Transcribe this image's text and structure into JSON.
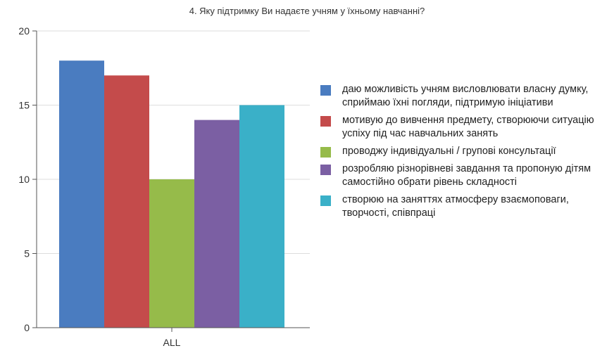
{
  "chart_data": {
    "type": "bar",
    "title": "4. Яку підтримку Ви надаєте учням у їхньому навчанні?",
    "categories": [
      "ALL"
    ],
    "ylim": [
      0,
      20
    ],
    "yticks": [
      0,
      5,
      10,
      15,
      20
    ],
    "grid": true,
    "legend_position": "right",
    "series": [
      {
        "name": "даю можливість учням висловлювати власну думку, сприймаю їхні погляди, підтримую ініціативи",
        "values": [
          18
        ],
        "color": "#4a7cc0"
      },
      {
        "name": "мотивую до вивчення предмету, створюючи ситуацію успіху під час навчальних занять",
        "values": [
          17
        ],
        "color": "#c44b4b"
      },
      {
        "name": "проводжу індивідуальні / групові консультації",
        "values": [
          10
        ],
        "color": "#96bb4a"
      },
      {
        "name": "розробляю різнорівневі завдання та пропоную дітям самостійно обрати рівень складності",
        "values": [
          14
        ],
        "color": "#7b5fa3"
      },
      {
        "name": "створюю на заняттях атмосферу взаємоповаги, творчості, співпраці",
        "values": [
          15
        ],
        "color": "#3ab0c8"
      }
    ]
  }
}
